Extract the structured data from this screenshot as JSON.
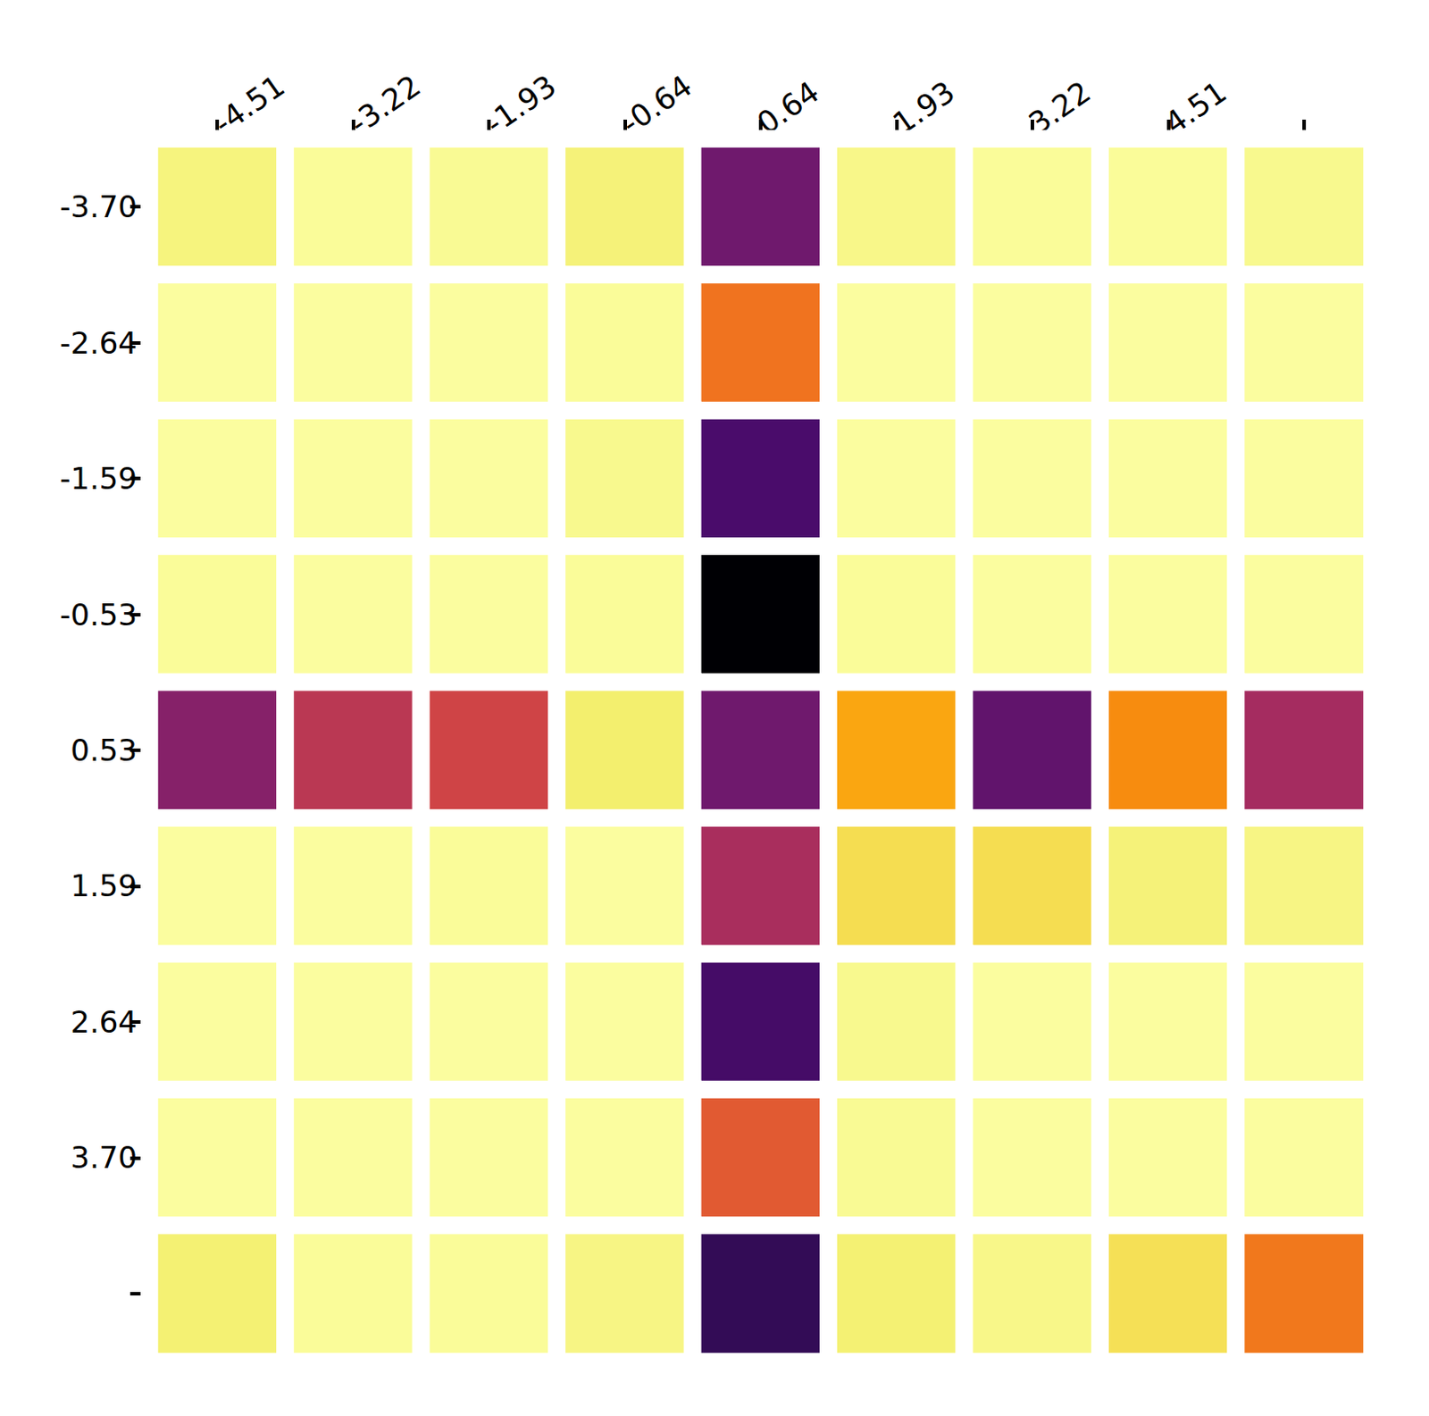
{
  "chart_data": {
    "type": "heatmap",
    "x": [
      "-4.51",
      "-3.22",
      "-1.93",
      "-0.64",
      "0.64",
      "1.93",
      "3.22",
      "4.51",
      null
    ],
    "y": [
      "-3.70",
      "-2.64",
      "-1.59",
      "-0.53",
      "0.53",
      "1.59",
      "2.64",
      "3.70",
      null
    ],
    "values": [
      [
        0.93,
        0.98,
        0.97,
        0.92,
        0.28,
        0.95,
        0.98,
        0.98,
        0.96
      ],
      [
        0.99,
        0.99,
        0.99,
        0.98,
        0.62,
        0.99,
        0.99,
        0.99,
        0.99
      ],
      [
        0.99,
        0.99,
        0.99,
        0.96,
        0.2,
        0.99,
        0.99,
        0.99,
        0.99
      ],
      [
        0.98,
        0.99,
        0.99,
        0.98,
        0.0,
        0.98,
        0.99,
        0.99,
        0.99
      ],
      [
        0.33,
        0.45,
        0.5,
        0.9,
        0.28,
        0.72,
        0.25,
        0.67,
        0.4
      ],
      [
        0.99,
        0.99,
        0.98,
        0.99,
        0.41,
        0.84,
        0.84,
        0.92,
        0.94
      ],
      [
        0.99,
        0.99,
        0.99,
        0.99,
        0.19,
        0.96,
        0.99,
        0.99,
        0.99
      ],
      [
        0.99,
        0.99,
        0.99,
        0.99,
        0.56,
        0.97,
        0.99,
        0.99,
        0.99
      ],
      [
        0.91,
        0.98,
        0.98,
        0.94,
        0.15,
        0.91,
        0.95,
        0.85,
        0.63
      ]
    ],
    "color_range": [
      0,
      1
    ]
  }
}
